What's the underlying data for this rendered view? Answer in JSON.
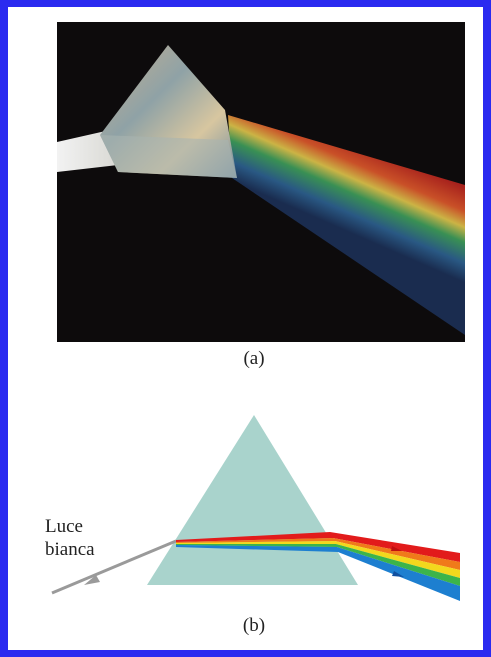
{
  "panels": [
    {
      "caption": "(a)"
    },
    {
      "caption": "(b)",
      "label_lines": [
        "Luce",
        "bianca"
      ]
    }
  ]
}
